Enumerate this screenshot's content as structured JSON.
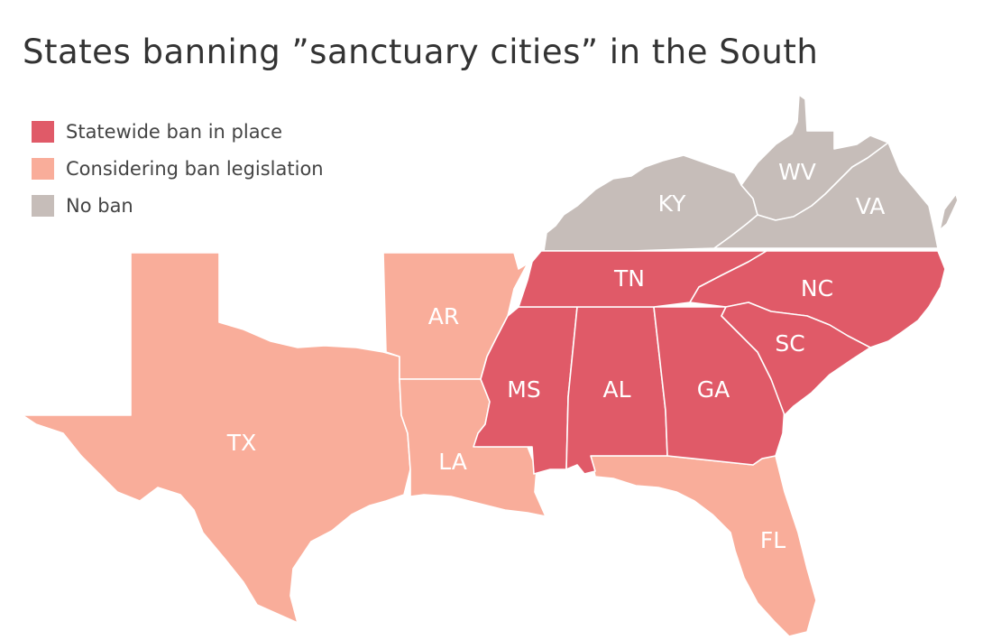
{
  "title": "States banning ”sanctuary cities” in the South",
  "legend": [
    {
      "label": "Statewide ban in place",
      "color": "#e05a68"
    },
    {
      "label": "Considering ban legislation",
      "color": "#f9ad9a"
    },
    {
      "label": "No ban",
      "color": "#c6bdb9"
    }
  ],
  "states": {
    "tx": {
      "abbr": "TX",
      "status": "Considering ban legislation"
    },
    "ar": {
      "abbr": "AR",
      "status": "Considering ban legislation"
    },
    "la": {
      "abbr": "LA",
      "status": "Considering ban legislation"
    },
    "fl": {
      "abbr": "FL",
      "status": "Considering ban legislation"
    },
    "ms": {
      "abbr": "MS",
      "status": "Statewide ban in place"
    },
    "al": {
      "abbr": "AL",
      "status": "Statewide ban in place"
    },
    "ga": {
      "abbr": "GA",
      "status": "Statewide ban in place"
    },
    "tn": {
      "abbr": "TN",
      "status": "Statewide ban in place"
    },
    "nc": {
      "abbr": "NC",
      "status": "Statewide ban in place"
    },
    "sc": {
      "abbr": "SC",
      "status": "Statewide ban in place"
    },
    "ky": {
      "abbr": "KY",
      "status": "No ban"
    },
    "wv": {
      "abbr": "WV",
      "status": "No ban"
    },
    "va": {
      "abbr": "VA",
      "status": "No ban"
    }
  }
}
